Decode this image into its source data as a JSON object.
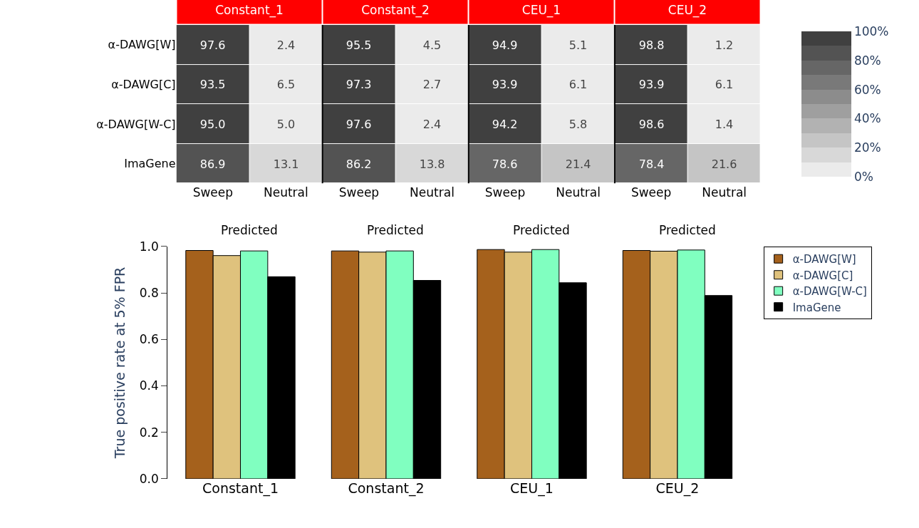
{
  "chart_data": [
    {
      "type": "heatmap",
      "categories": [
        "Sweep",
        "Neutral",
        "Sweep",
        "Neutral",
        "Sweep",
        "Neutral",
        "Sweep",
        "Neutral"
      ],
      "y_categories": [
        "α-DAWG[W]",
        "α-DAWG[C]",
        "α-DAWG[W-C]",
        "ImaGene"
      ],
      "cells": [
        [
          97.6,
          2.4,
          95.5,
          4.5,
          94.9,
          5.1,
          98.8,
          1.2
        ],
        [
          93.5,
          6.5,
          97.3,
          2.7,
          93.9,
          6.1,
          93.9,
          6.1
        ],
        [
          95.0,
          5.0,
          97.6,
          2.4,
          94.2,
          5.8,
          98.6,
          1.4
        ],
        [
          86.9,
          13.1,
          86.2,
          13.8,
          78.6,
          21.4,
          78.4,
          21.6
        ]
      ],
      "cell_labels": [
        [
          "97.6",
          "2.4",
          "95.5",
          "4.5",
          "94.9",
          "5.1",
          "98.8",
          "1.2"
        ],
        [
          "93.5",
          "6.5",
          "97.3",
          "2.7",
          "93.9",
          "6.1",
          "93.9",
          "6.1"
        ],
        [
          "95.0",
          "5.0",
          "97.6",
          "2.4",
          "94.2",
          "5.8",
          "98.6",
          "1.4"
        ],
        [
          "86.9",
          "13.1",
          "86.2",
          "13.8",
          "78.6",
          "21.4",
          "78.4",
          "21.6"
        ]
      ],
      "clim": [
        0,
        100
      ],
      "cticks": [
        {
          "value": 0,
          "label": "0%"
        },
        {
          "value": 20,
          "label": "20%"
        },
        {
          "value": 40,
          "label": "40%"
        },
        {
          "value": 60,
          "label": "60%"
        },
        {
          "value": 80,
          "label": "80%"
        },
        {
          "value": 100,
          "label": "100%"
        }
      ],
      "annotations": [
        "Constant_1",
        "Constant_2",
        "CEU_1",
        "CEU_2",
        "Predicted",
        "Predicted",
        "Predicted",
        "Predicted"
      ]
    },
    {
      "type": "bar",
      "categories": [
        "Constant_1",
        "Constant_2",
        "CEU_1",
        "CEU_2"
      ],
      "ylabel": "True positive rate at 5% FPR",
      "ylim": [
        0,
        1
      ],
      "yticks": [
        {
          "value": 0,
          "label": "0.0"
        },
        {
          "value": 0.2,
          "label": "0.2"
        },
        {
          "value": 0.4,
          "label": "0.4"
        },
        {
          "value": 0.6,
          "label": "0.6"
        },
        {
          "value": 0.8,
          "label": "0.8"
        },
        {
          "value": 1,
          "label": "1.0"
        }
      ],
      "legend": "right",
      "series": [
        {
          "name": "α-DAWG[W]",
          "color": "#a5611c",
          "values": [
            0.983,
            0.981,
            0.987,
            0.983
          ]
        },
        {
          "name": "α-DAWG[C]",
          "color": "#dfc27d",
          "values": [
            0.961,
            0.976,
            0.976,
            0.98
          ]
        },
        {
          "name": "α-DAWG[W-C]",
          "color": "#80ffc0",
          "values": [
            0.981,
            0.981,
            0.987,
            0.985
          ]
        },
        {
          "name": "ImaGene",
          "color": "#000000",
          "values": [
            0.87,
            0.854,
            0.844,
            0.789
          ]
        }
      ]
    }
  ]
}
